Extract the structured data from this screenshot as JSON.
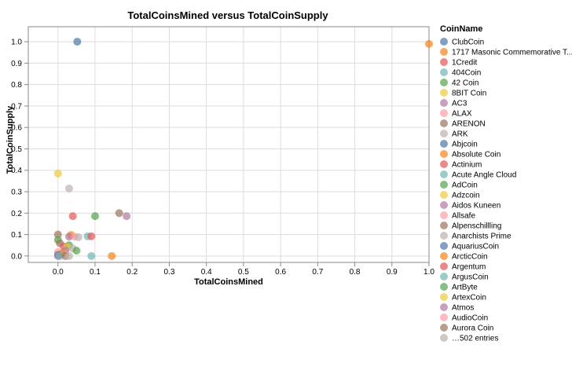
{
  "chart_data": {
    "type": "scatter",
    "title": "TotalCoinsMined versus TotalCoinSupply",
    "xlabel": "TotalCoinsMined",
    "ylabel": "TotalCoinSupply",
    "xlim": [
      -0.08,
      1.0
    ],
    "ylim": [
      -0.03,
      1.07
    ],
    "x_ticks": [
      "0.0",
      "0.1",
      "0.2",
      "0.3",
      "0.4",
      "0.5",
      "0.6",
      "0.7",
      "0.8",
      "0.9",
      "1.0"
    ],
    "y_ticks": [
      "0.0",
      "0.1",
      "0.2",
      "0.3",
      "0.4",
      "0.5",
      "0.6",
      "0.7",
      "0.8",
      "0.9",
      "1.0"
    ],
    "grid": true,
    "legend": {
      "title": "CoinName",
      "placement": "right",
      "entries": [
        {
          "name": "ClubCoin",
          "color": "#4c78a8"
        },
        {
          "name": "1717 Masonic Commemorative T...",
          "color": "#f58518"
        },
        {
          "name": "1Credit",
          "color": "#e45756"
        },
        {
          "name": "404Coin",
          "color": "#72b7b2"
        },
        {
          "name": "42 Coin",
          "color": "#54a24b"
        },
        {
          "name": "8BIT Coin",
          "color": "#eeca3b"
        },
        {
          "name": "AC3",
          "color": "#b279a2"
        },
        {
          "name": "ALAX",
          "color": "#ff9da6"
        },
        {
          "name": "ARENON",
          "color": "#9d755d"
        },
        {
          "name": "ARK",
          "color": "#bab0ac"
        },
        {
          "name": "Abjcoin",
          "color": "#4c78a8"
        },
        {
          "name": "Absolute Coin",
          "color": "#f58518"
        },
        {
          "name": "Actinium",
          "color": "#e45756"
        },
        {
          "name": "Acute Angle Cloud",
          "color": "#72b7b2"
        },
        {
          "name": "AdCoin",
          "color": "#54a24b"
        },
        {
          "name": "Adzcoin",
          "color": "#eeca3b"
        },
        {
          "name": "Aidos Kuneen",
          "color": "#b279a2"
        },
        {
          "name": "Allsafe",
          "color": "#ff9da6"
        },
        {
          "name": "Alpenschillling",
          "color": "#9d755d"
        },
        {
          "name": "Anarchists Prime",
          "color": "#bab0ac"
        },
        {
          "name": "AquariusCoin",
          "color": "#4c78a8"
        },
        {
          "name": "ArcticCoin",
          "color": "#f58518"
        },
        {
          "name": "Argentum",
          "color": "#e45756"
        },
        {
          "name": "ArgusCoin",
          "color": "#72b7b2"
        },
        {
          "name": "ArtByte",
          "color": "#54a24b"
        },
        {
          "name": "ArtexCoin",
          "color": "#eeca3b"
        },
        {
          "name": "Atmos",
          "color": "#b279a2"
        },
        {
          "name": "AudioCoin",
          "color": "#ff9da6"
        },
        {
          "name": "Aurora Coin",
          "color": "#9d755d"
        },
        {
          "name": "…502 entries",
          "color": "#bab0ac"
        }
      ]
    },
    "points": [
      {
        "x": 0.052,
        "y": 1.0,
        "color": "#4c78a8"
      },
      {
        "x": 1.0,
        "y": 0.99,
        "color": "#f58518"
      },
      {
        "x": 0.0,
        "y": 0.385,
        "color": "#eeca3b"
      },
      {
        "x": 0.03,
        "y": 0.315,
        "color": "#bab0ac"
      },
      {
        "x": 0.165,
        "y": 0.2,
        "color": "#9d755d"
      },
      {
        "x": 0.185,
        "y": 0.186,
        "color": "#b279a2"
      },
      {
        "x": 0.1,
        "y": 0.186,
        "color": "#54a24b"
      },
      {
        "x": 0.04,
        "y": 0.186,
        "color": "#e45756"
      },
      {
        "x": 0.0,
        "y": 0.1,
        "color": "#9d755d"
      },
      {
        "x": 0.035,
        "y": 0.098,
        "color": "#f58518"
      },
      {
        "x": 0.03,
        "y": 0.09,
        "color": "#b279a2"
      },
      {
        "x": 0.045,
        "y": 0.09,
        "color": "#ff9da6"
      },
      {
        "x": 0.055,
        "y": 0.088,
        "color": "#bab0ac"
      },
      {
        "x": 0.08,
        "y": 0.092,
        "color": "#72b7b2"
      },
      {
        "x": 0.09,
        "y": 0.092,
        "color": "#e45756"
      },
      {
        "x": 0.0,
        "y": 0.075,
        "color": "#54a24b"
      },
      {
        "x": 0.005,
        "y": 0.06,
        "color": "#9d755d"
      },
      {
        "x": 0.015,
        "y": 0.045,
        "color": "#e45756"
      },
      {
        "x": 0.03,
        "y": 0.05,
        "color": "#54a24b"
      },
      {
        "x": 0.025,
        "y": 0.04,
        "color": "#eeca3b"
      },
      {
        "x": 0.04,
        "y": 0.035,
        "color": "#bab0ac"
      },
      {
        "x": 0.05,
        "y": 0.025,
        "color": "#54a24b"
      },
      {
        "x": 0.02,
        "y": 0.025,
        "color": "#b279a2"
      },
      {
        "x": 0.0,
        "y": 0.018,
        "color": "#ff9da6"
      },
      {
        "x": 0.01,
        "y": 0.012,
        "color": "#f58518"
      },
      {
        "x": 0.0,
        "y": 0.005,
        "color": "#4c78a8"
      },
      {
        "x": 0.0,
        "y": 0.0,
        "color": "#b279a2"
      },
      {
        "x": 0.005,
        "y": 0.0,
        "color": "#72b7b2"
      },
      {
        "x": 0.02,
        "y": 0.0,
        "color": "#9d755d"
      },
      {
        "x": 0.03,
        "y": 0.0,
        "color": "#bab0ac"
      },
      {
        "x": 0.09,
        "y": 0.0,
        "color": "#72b7b2"
      },
      {
        "x": 0.145,
        "y": 0.0,
        "color": "#f58518"
      }
    ]
  }
}
